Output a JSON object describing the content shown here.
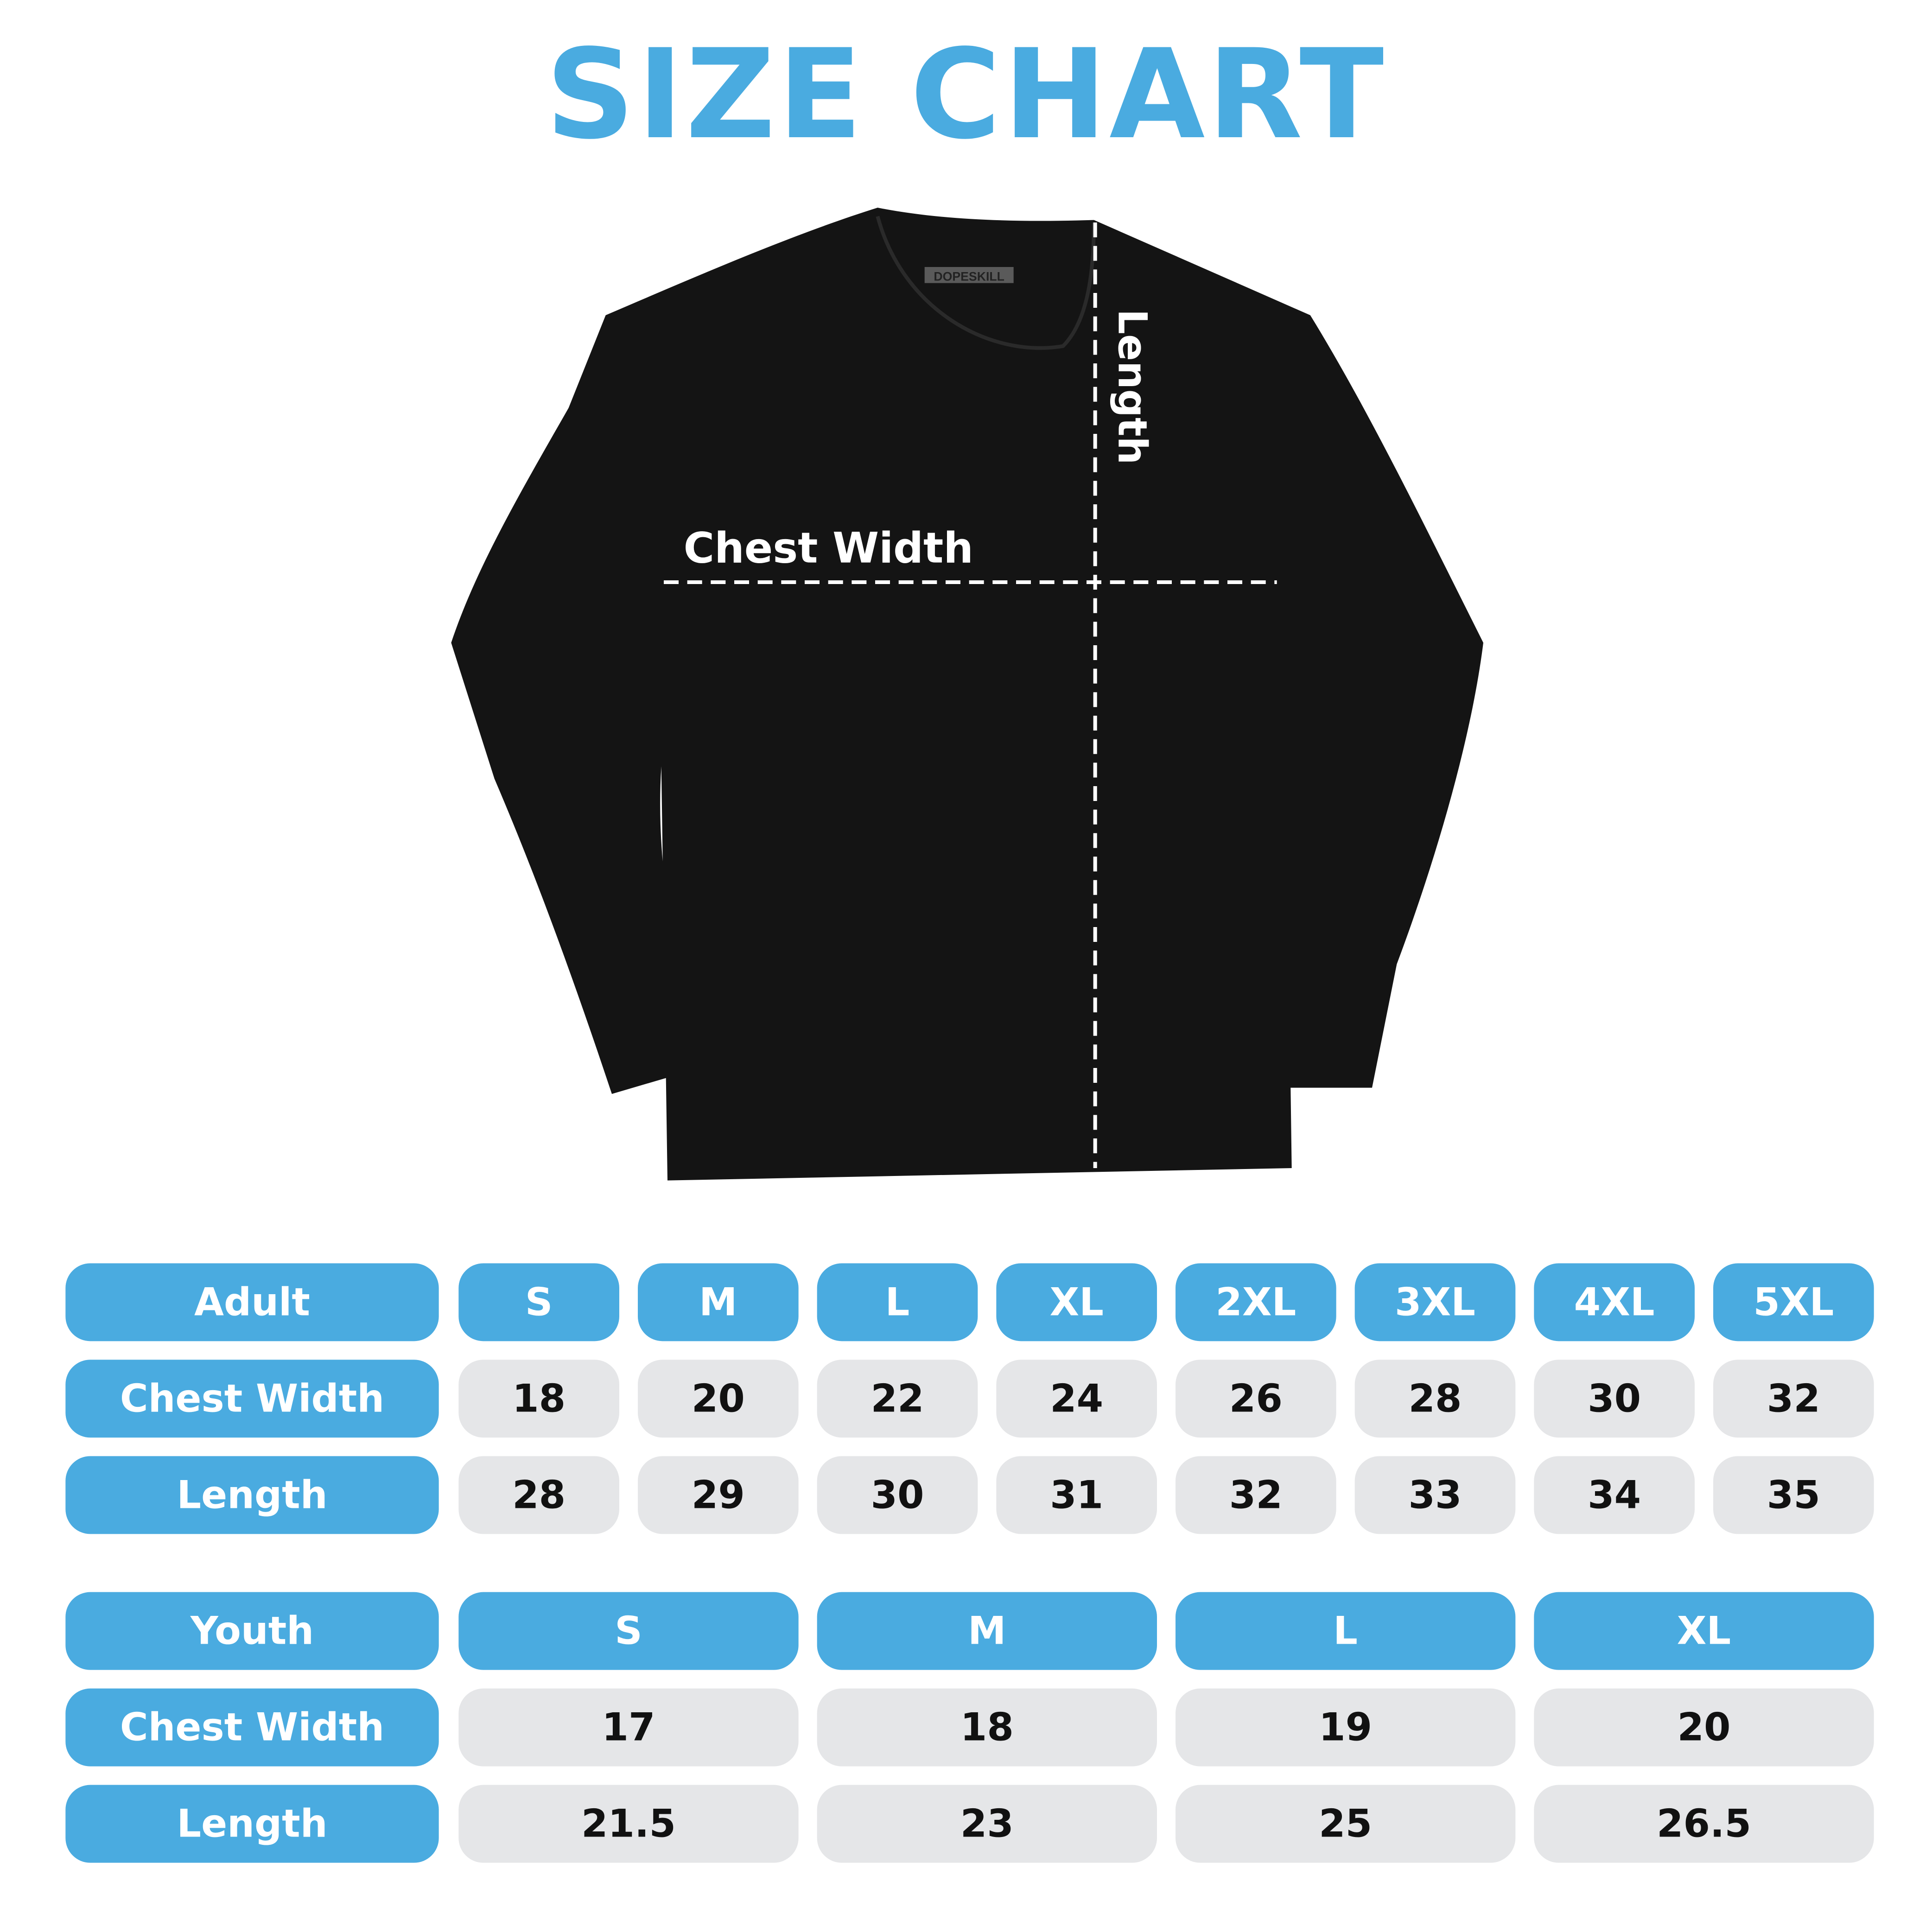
{
  "title": "SIZE CHART",
  "garment": {
    "brand_tag": "DOPESKILL",
    "chest_label": "Chest Width",
    "length_label": "Length"
  },
  "colors": {
    "accent": "#4aabe0",
    "cell": "#e5e6e8",
    "shirt": "#141414"
  },
  "adult": {
    "header": "Adult",
    "sizes": [
      "S",
      "M",
      "L",
      "XL",
      "2XL",
      "3XL",
      "4XL",
      "5XL"
    ],
    "rows": [
      {
        "label": "Chest Width",
        "values": [
          "18",
          "20",
          "22",
          "24",
          "26",
          "28",
          "30",
          "32"
        ]
      },
      {
        "label": "Length",
        "values": [
          "28",
          "29",
          "30",
          "31",
          "32",
          "33",
          "34",
          "35"
        ]
      }
    ]
  },
  "youth": {
    "header": "Youth",
    "sizes": [
      "S",
      "M",
      "L",
      "XL"
    ],
    "rows": [
      {
        "label": "Chest Width",
        "values": [
          "17",
          "18",
          "19",
          "20"
        ]
      },
      {
        "label": "Length",
        "values": [
          "21.5",
          "23",
          "25",
          "26.5"
        ]
      }
    ]
  }
}
